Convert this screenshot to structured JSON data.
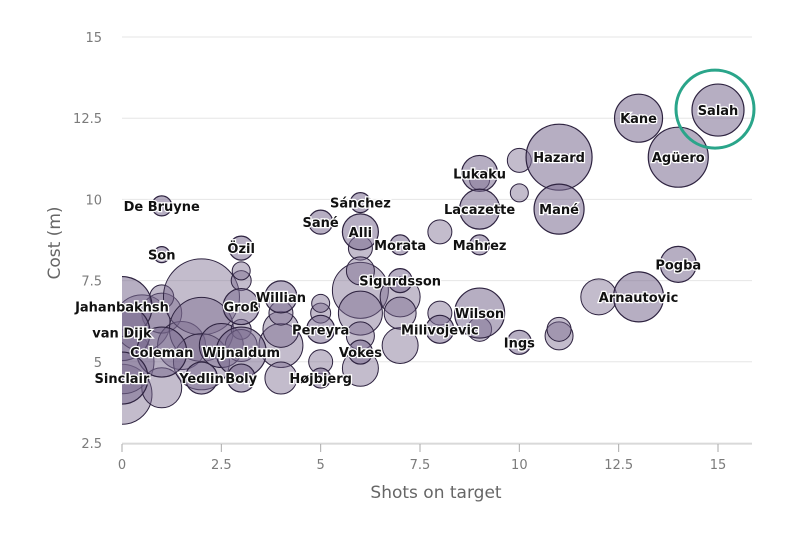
{
  "chart_data": {
    "type": "scatter",
    "title": "",
    "xlabel": "Shots on target",
    "ylabel": "Cost (m)",
    "xlim": [
      0,
      15.8
    ],
    "ylim": [
      2.5,
      15.6
    ],
    "x_ticks": [
      0,
      2.5,
      5,
      7.5,
      10,
      12.5,
      15
    ],
    "x_tick_labels": [
      "0",
      "2.5",
      "5",
      "7.5",
      "10",
      "12.5",
      "15"
    ],
    "y_ticks": [
      2.5,
      5,
      7.5,
      10,
      12.5,
      15
    ],
    "y_tick_labels": [
      "2.5",
      "5",
      "7.5",
      "10",
      "12.5",
      "15"
    ],
    "grid": "horizontal",
    "highlight": "Salah",
    "colors": {
      "bubble_fill": "#7a6b8f",
      "bubble_stroke": "#2e2340",
      "highlight_ring": "#2aa58a",
      "grid": "#e6e6e6",
      "axis": "#cccccc"
    },
    "points": [
      {
        "name": "Salah",
        "x": 15,
        "y": 12.75,
        "size": 2.6
      },
      {
        "name": "Kane",
        "x": 13,
        "y": 12.5,
        "size": 2.4
      },
      {
        "name": "Agüero",
        "x": 14,
        "y": 11.3,
        "size": 3.0
      },
      {
        "name": "Hazard",
        "x": 11,
        "y": 11.3,
        "size": 3.3
      },
      {
        "name": "Lukaku",
        "x": 9,
        "y": 10.8,
        "size": 1.8
      },
      {
        "name": "Mané",
        "x": 11,
        "y": 9.7,
        "size": 2.5
      },
      {
        "name": "Lacazette",
        "x": 9,
        "y": 9.7,
        "size": 2.0
      },
      {
        "name": "Mahrez",
        "x": 9,
        "y": 8.6,
        "size": 1.0
      },
      {
        "name": "Morata",
        "x": 7,
        "y": 8.6,
        "size": 1.0
      },
      {
        "name": "Alli",
        "x": 6,
        "y": 9.0,
        "size": 1.8
      },
      {
        "name": "Sánchez",
        "x": 6,
        "y": 9.9,
        "size": 1.0
      },
      {
        "name": "Sané",
        "x": 5,
        "y": 9.3,
        "size": 1.2
      },
      {
        "name": "De Bruyne",
        "x": 1,
        "y": 9.8,
        "size": 1.0
      },
      {
        "name": "Son",
        "x": 1,
        "y": 8.3,
        "size": 0.8
      },
      {
        "name": "Özil",
        "x": 3,
        "y": 8.5,
        "size": 1.2
      },
      {
        "name": "Pogba",
        "x": 14,
        "y": 8.0,
        "size": 1.8
      },
      {
        "name": "Arnautovic",
        "x": 13,
        "y": 7.0,
        "size": 2.5
      },
      {
        "name": "Sigurdsson",
        "x": 7,
        "y": 7.5,
        "size": 1.2
      },
      {
        "name": "Willian",
        "x": 4,
        "y": 7.0,
        "size": 1.6
      },
      {
        "name": "Wilson",
        "x": 9,
        "y": 6.5,
        "size": 2.5
      },
      {
        "name": "Ings",
        "x": 10,
        "y": 5.6,
        "size": 1.2
      },
      {
        "name": "Milivojevic",
        "x": 8,
        "y": 6.0,
        "size": 1.4
      },
      {
        "name": "Jahanbakhsh",
        "x": 0,
        "y": 6.7,
        "size": 3.0
      },
      {
        "name": "Groß",
        "x": 3,
        "y": 6.7,
        "size": 1.8
      },
      {
        "name": "van Dijk",
        "x": 0,
        "y": 5.9,
        "size": 2.8
      },
      {
        "name": "Pereyra",
        "x": 5,
        "y": 6.0,
        "size": 1.4
      },
      {
        "name": "Wijnaldum",
        "x": 3,
        "y": 5.3,
        "size": 2.5
      },
      {
        "name": "Coleman",
        "x": 1,
        "y": 5.3,
        "size": 2.5
      },
      {
        "name": "Vokes",
        "x": 6,
        "y": 5.3,
        "size": 1.2
      },
      {
        "name": "Sinclair",
        "x": 0,
        "y": 4.5,
        "size": 2.6
      },
      {
        "name": "Yedlin",
        "x": 2,
        "y": 4.5,
        "size": 1.6
      },
      {
        "name": "Boly",
        "x": 3,
        "y": 4.5,
        "size": 1.4
      },
      {
        "name": "Højbjerg",
        "x": 5,
        "y": 4.5,
        "size": 1.0
      }
    ],
    "background_points": [
      {
        "x": 0,
        "y": 4.0,
        "size": 3.0
      },
      {
        "x": 0,
        "y": 5.0,
        "size": 3.2
      },
      {
        "x": 0.5,
        "y": 6.2,
        "size": 2.8
      },
      {
        "x": 1,
        "y": 4.2,
        "size": 2.0
      },
      {
        "x": 1,
        "y": 6.5,
        "size": 2.0
      },
      {
        "x": 1,
        "y": 7.0,
        "size": 1.2
      },
      {
        "x": 1.5,
        "y": 5.5,
        "size": 2.4
      },
      {
        "x": 2,
        "y": 7.0,
        "size": 3.8
      },
      {
        "x": 2,
        "y": 6.0,
        "size": 3.2
      },
      {
        "x": 2,
        "y": 5.0,
        "size": 2.8
      },
      {
        "x": 2.5,
        "y": 5.5,
        "size": 2.2
      },
      {
        "x": 3,
        "y": 6.0,
        "size": 1.0
      },
      {
        "x": 3,
        "y": 5.5,
        "size": 1.6
      },
      {
        "x": 3,
        "y": 7.5,
        "size": 1.0
      },
      {
        "x": 3,
        "y": 7.8,
        "size": 0.9
      },
      {
        "x": 4,
        "y": 5.5,
        "size": 2.2
      },
      {
        "x": 4,
        "y": 6.0,
        "size": 1.8
      },
      {
        "x": 4,
        "y": 4.5,
        "size": 1.6
      },
      {
        "x": 4,
        "y": 6.5,
        "size": 1.2
      },
      {
        "x": 5,
        "y": 6.5,
        "size": 1.0
      },
      {
        "x": 5,
        "y": 5.0,
        "size": 1.2
      },
      {
        "x": 5,
        "y": 6.8,
        "size": 0.9
      },
      {
        "x": 6,
        "y": 7.2,
        "size": 2.8
      },
      {
        "x": 6,
        "y": 6.5,
        "size": 2.2
      },
      {
        "x": 6,
        "y": 8.5,
        "size": 1.2
      },
      {
        "x": 6,
        "y": 4.8,
        "size": 1.8
      },
      {
        "x": 6,
        "y": 5.8,
        "size": 1.4
      },
      {
        "x": 6,
        "y": 7.8,
        "size": 1.4
      },
      {
        "x": 7,
        "y": 7.0,
        "size": 2.0
      },
      {
        "x": 7,
        "y": 5.5,
        "size": 1.8
      },
      {
        "x": 7,
        "y": 6.5,
        "size": 1.6
      },
      {
        "x": 8,
        "y": 6.5,
        "size": 1.2
      },
      {
        "x": 8,
        "y": 9.0,
        "size": 1.2
      },
      {
        "x": 9,
        "y": 6.0,
        "size": 1.2
      },
      {
        "x": 9,
        "y": 10.6,
        "size": 1.0
      },
      {
        "x": 10,
        "y": 10.2,
        "size": 0.9
      },
      {
        "x": 10,
        "y": 11.2,
        "size": 1.2
      },
      {
        "x": 11,
        "y": 5.8,
        "size": 1.4
      },
      {
        "x": 11,
        "y": 6.0,
        "size": 1.2
      },
      {
        "x": 12,
        "y": 7.0,
        "size": 1.8
      }
    ]
  }
}
